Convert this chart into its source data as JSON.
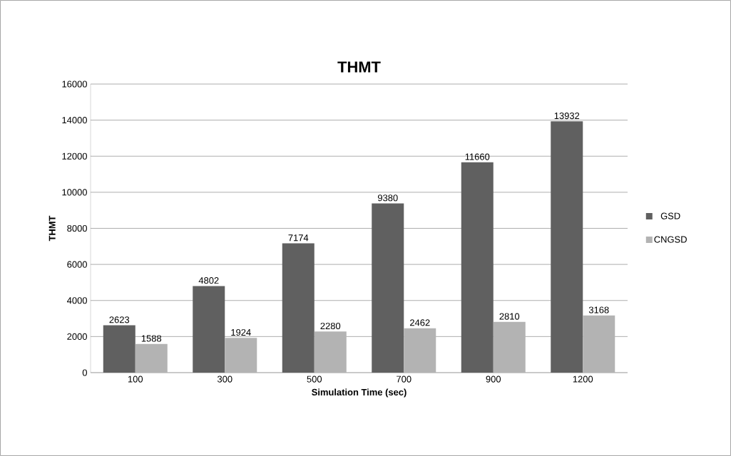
{
  "chart_data": {
    "type": "bar",
    "title": "THMT",
    "xlabel": "Simulation Time (sec)",
    "ylabel": "THMT",
    "categories": [
      "100",
      "300",
      "500",
      "700",
      "900",
      "1200"
    ],
    "series": [
      {
        "name": "GSD",
        "color": "#606060",
        "values": [
          2623,
          4802,
          7174,
          9380,
          11660,
          13932
        ]
      },
      {
        "name": "CNGSD",
        "color": "#b3b3b3",
        "values": [
          1588,
          1924,
          2280,
          2462,
          2810,
          3168
        ]
      }
    ],
    "ylim": [
      0,
      16000
    ],
    "yticks": [
      0,
      2000,
      4000,
      6000,
      8000,
      10000,
      12000,
      14000,
      16000
    ],
    "grid": "y",
    "legend": "right",
    "data_labels": true
  }
}
